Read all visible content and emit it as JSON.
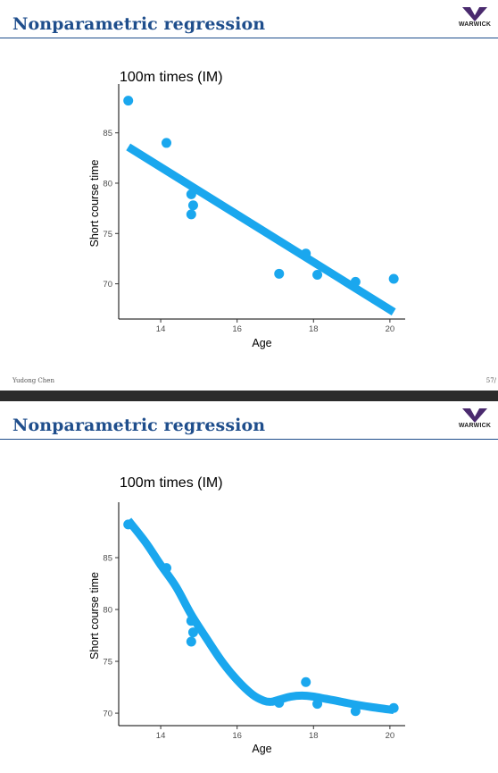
{
  "slides": [
    {
      "title": "Nonparametric regression",
      "logo_text": "WARWICK",
      "footer_author": "Yudong Chen",
      "footer_page": "57/",
      "chart_data": {
        "type": "scatter",
        "fit": "linear",
        "title": "100m times (IM)",
        "xlabel": "Age",
        "ylabel": "Short course time",
        "xlim": [
          12.9,
          20.4
        ],
        "ylim": [
          66.5,
          89.5
        ],
        "xticks": [
          14,
          16,
          18,
          20
        ],
        "yticks": [
          70,
          75,
          80,
          85
        ],
        "grid": false,
        "point_color": "#1aa7ee",
        "x": [
          13.15,
          14.15,
          14.8,
          14.85,
          14.8,
          17.1,
          17.8,
          18.1,
          19.1,
          20.1
        ],
        "y": [
          88.2,
          84.0,
          78.9,
          77.8,
          76.9,
          71.0,
          73.0,
          70.9,
          70.2,
          70.5
        ],
        "fit_line": {
          "x": [
            13.15,
            20.1
          ],
          "y": [
            83.6,
            67.2
          ]
        }
      }
    },
    {
      "title": "Nonparametric regression",
      "logo_text": "WARWICK",
      "chart_data": {
        "type": "scatter",
        "fit": "smooth",
        "title": "100m times (IM)",
        "xlabel": "Age",
        "ylabel": "Short course time",
        "xlim": [
          12.9,
          20.4
        ],
        "ylim": [
          68.8,
          90.0
        ],
        "xticks": [
          14,
          16,
          18,
          20
        ],
        "yticks": [
          70,
          75,
          80,
          85
        ],
        "grid": false,
        "point_color": "#1aa7ee",
        "x": [
          13.15,
          14.15,
          14.8,
          14.85,
          14.8,
          17.1,
          17.8,
          18.1,
          19.1,
          20.1
        ],
        "y": [
          88.2,
          84.0,
          78.9,
          77.8,
          76.9,
          71.0,
          73.0,
          70.9,
          70.2,
          70.5
        ],
        "fit_line": {
          "x": [
            13.15,
            13.6,
            14.0,
            14.4,
            14.8,
            15.2,
            15.6,
            16.0,
            16.4,
            16.7,
            16.9,
            17.1,
            17.4,
            17.7,
            18.0,
            18.3,
            18.6,
            19.0,
            19.5,
            20.1
          ],
          "y": [
            88.6,
            86.5,
            84.3,
            82.2,
            79.5,
            77.2,
            75.0,
            73.2,
            71.8,
            71.2,
            71.1,
            71.3,
            71.6,
            71.7,
            71.6,
            71.4,
            71.2,
            70.9,
            70.6,
            70.3
          ]
        }
      }
    }
  ]
}
